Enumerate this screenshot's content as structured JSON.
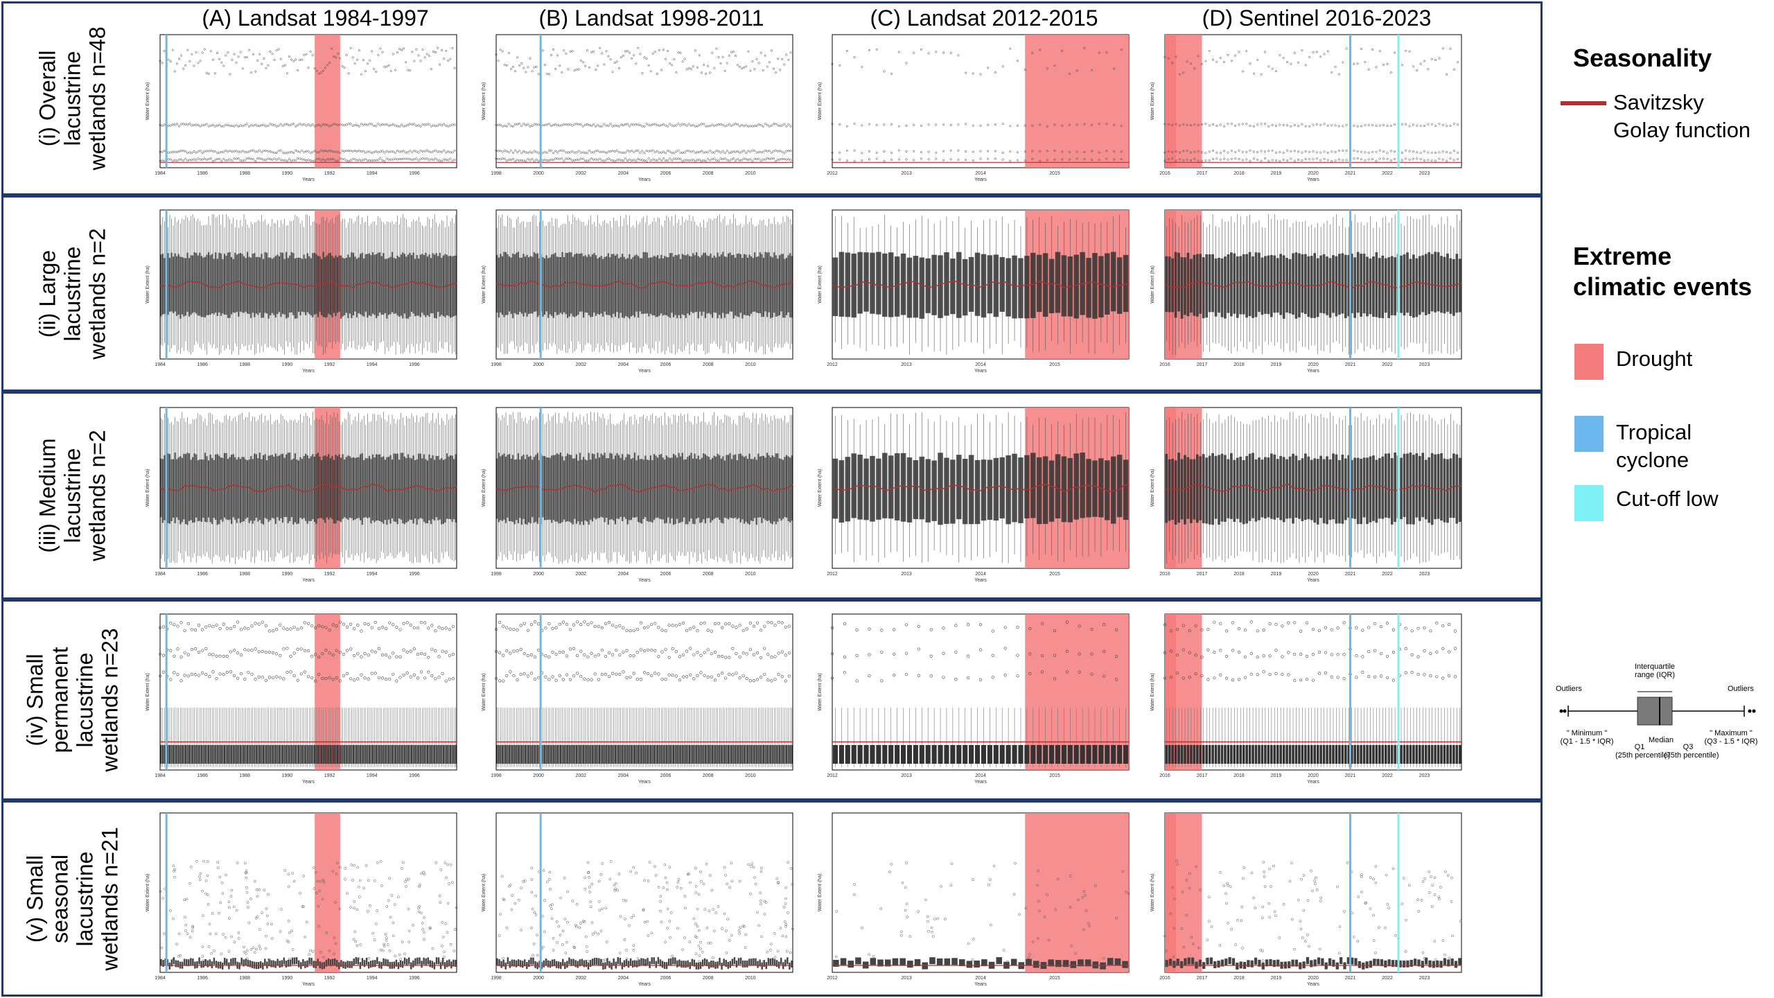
{
  "columns": [
    {
      "title": "(A) Landsat 1984-1997"
    },
    {
      "title": "(B) Landsat 1998-2011"
    },
    {
      "title": "(C) Landsat 2012-2015"
    },
    {
      "title": "(D) Sentinel 2016-2023"
    }
  ],
  "rows": [
    {
      "label": "(i) Overall\nlacustrine\nwetlands n=48",
      "kind": "overall"
    },
    {
      "label": "(ii) Large\nlacustrine\nwetlands n=2",
      "kind": "box"
    },
    {
      "label": "(iii) Medium\nlacustrine\nwetlands n=2",
      "kind": "box"
    },
    {
      "label": "(iv) Small\npermanent\nlacustrine\nwetlands n=23",
      "kind": "smallperm"
    },
    {
      "label": "(v) Small\nseasonal\nlacustrine\nwetlands n=21",
      "kind": "seasonal"
    }
  ],
  "axis_text": {
    "xlabel": "Years",
    "ylabel": "Water Extent (ha)"
  },
  "legend": {
    "seasonality_title": "Seasonality",
    "sg_label": "Savitzsky\nGolay function",
    "events_title": "Extreme\nclimatic events",
    "drought_label": "Drought",
    "cyclone_label": "Tropical\ncyclone",
    "cutoff_label": "Cut-off low"
  },
  "colors": {
    "drought": "#f47c7c",
    "cyclone": "#6cb8ec",
    "cutoff": "#7ef0f6",
    "frame": "#1f3a68",
    "sg_line": "#b03030"
  },
  "boxplot_key": {
    "iqr": "Interquartile\nrange (IQR)",
    "outliers": "Outliers",
    "minimum": "\" Minimum \"\n(Q1 - 1.5 * IQR)",
    "maximum": "\" Maximum \"\n(Q3 - 1.5 * IQR)",
    "q1": "Q1\n(25th percentile)",
    "median": "Median",
    "q3": "Q3\n(75th percentile)"
  },
  "chart_data": {
    "type": "box",
    "x_unit": "year",
    "y_label": "Water Extent (ha)",
    "events": {
      "drought": [
        [
          1991.3,
          1992.5
        ],
        [
          2014.6,
          2016.3
        ],
        [
          2016.0,
          2017.0
        ]
      ],
      "tropical_cyclone": [
        1984.3,
        2000.1,
        2021.0
      ],
      "cut_off_low": [
        2022.3
      ]
    },
    "panels": [
      {
        "row": "overall",
        "period": "1984-1997",
        "x_range": [
          1984,
          1997
        ]
      },
      {
        "row": "overall",
        "period": "1998-2011",
        "x_range": [
          1998,
          2011
        ]
      },
      {
        "row": "overall",
        "period": "2012-2015",
        "x_range": [
          2012,
          2015
        ]
      },
      {
        "row": "overall",
        "period": "2016-2023",
        "x_range": [
          2016,
          2023
        ]
      },
      {
        "row": "large",
        "period": "1984-1997",
        "x_range": [
          1984,
          1997
        ]
      },
      {
        "row": "large",
        "period": "1998-2011",
        "x_range": [
          1998,
          2011
        ]
      },
      {
        "row": "large",
        "period": "2012-2015",
        "x_range": [
          2012,
          2015
        ]
      },
      {
        "row": "large",
        "period": "2016-2023",
        "x_range": [
          2016,
          2023
        ]
      },
      {
        "row": "medium",
        "period": "1984-1997",
        "x_range": [
          1984,
          1997
        ]
      },
      {
        "row": "medium",
        "period": "1998-2011",
        "x_range": [
          1998,
          2011
        ]
      },
      {
        "row": "medium",
        "period": "2012-2015",
        "x_range": [
          2012,
          2015
        ]
      },
      {
        "row": "medium",
        "period": "2016-2023",
        "x_range": [
          2016,
          2023
        ]
      },
      {
        "row": "small_permanent",
        "period": "1984-1997",
        "x_range": [
          1984,
          1997
        ]
      },
      {
        "row": "small_permanent",
        "period": "1998-2011",
        "x_range": [
          1998,
          2011
        ]
      },
      {
        "row": "small_permanent",
        "period": "2012-2015",
        "x_range": [
          2012,
          2015
        ]
      },
      {
        "row": "small_permanent",
        "period": "2016-2023",
        "x_range": [
          2016,
          2023
        ]
      },
      {
        "row": "small_seasonal",
        "period": "1984-1997",
        "x_range": [
          1984,
          1997
        ]
      },
      {
        "row": "small_seasonal",
        "period": "1998-2011",
        "x_range": [
          1998,
          2011
        ]
      },
      {
        "row": "small_seasonal",
        "period": "2012-2015",
        "x_range": [
          2012,
          2015
        ]
      },
      {
        "row": "small_seasonal",
        "period": "2016-2023",
        "x_range": [
          2016,
          2023
        ]
      }
    ]
  }
}
